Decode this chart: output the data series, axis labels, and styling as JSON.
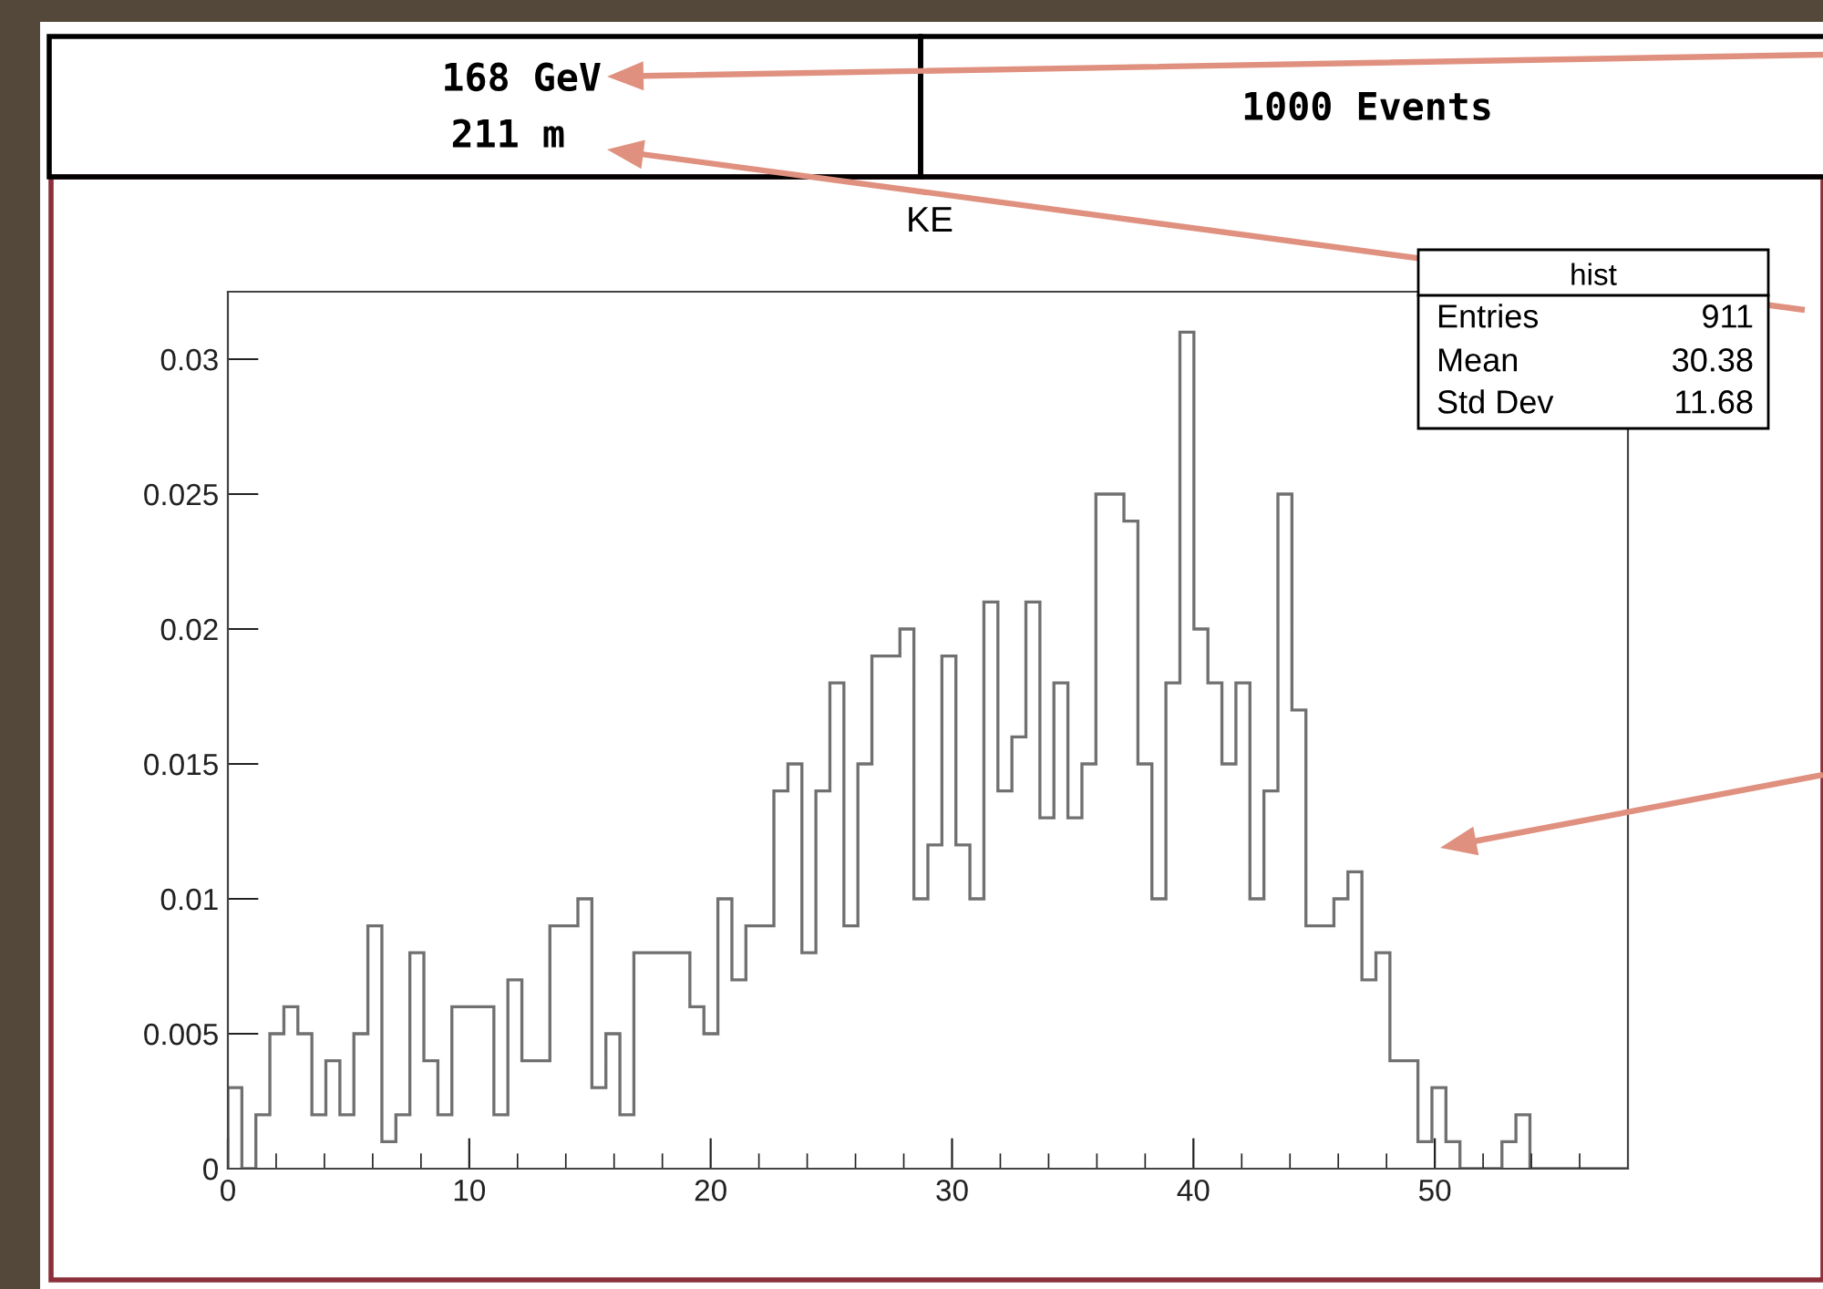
{
  "chart_data": {
    "type": "histogram",
    "title": "KE",
    "bins": [
      0,
      0.58,
      1.16,
      1.74,
      2.32,
      2.9,
      3.48,
      4.06,
      4.64,
      5.22,
      5.8,
      6.38,
      6.96,
      7.54,
      8.12,
      8.7,
      9.28,
      9.86,
      10.44,
      11.02,
      11.6,
      12.18,
      12.76,
      13.34,
      13.92,
      14.5,
      15.08,
      15.66,
      16.24,
      16.82,
      17.4,
      17.98,
      18.56,
      19.14,
      19.72,
      20.3,
      20.88,
      21.46,
      22.04,
      22.62,
      23.2,
      23.78,
      24.36,
      24.94,
      25.52,
      26.1,
      26.68,
      27.26,
      27.84,
      28.42,
      29,
      29.58,
      30.16,
      30.74,
      31.32,
      31.9,
      32.48,
      33.06,
      33.64,
      34.22,
      34.8,
      35.38,
      35.96,
      36.54,
      37.12,
      37.7,
      38.28,
      38.86,
      39.44,
      40.02,
      40.6,
      41.18,
      41.76,
      42.34,
      42.92,
      43.5,
      44.08,
      44.66,
      45.24,
      45.82,
      46.4,
      46.98,
      47.56,
      48.14,
      48.72,
      49.3,
      49.88,
      50.46,
      51.04,
      51.62,
      52.2,
      52.78,
      53.36,
      53.94,
      54.52,
      55.1,
      55.68,
      56.26,
      56.84,
      57.42,
      58
    ],
    "values": [
      0.003,
      0,
      0.002,
      0.005,
      0.006,
      0.005,
      0.002,
      0.004,
      0.002,
      0.005,
      0.009,
      0.001,
      0.002,
      0.008,
      0.004,
      0.002,
      0.006,
      0.006,
      0.006,
      0.002,
      0.007,
      0.004,
      0.004,
      0.009,
      0.009,
      0.01,
      0.003,
      0.005,
      0.002,
      0.008,
      0.008,
      0.008,
      0.008,
      0.006,
      0.005,
      0.01,
      0.007,
      0.009,
      0.009,
      0.014,
      0.015,
      0.008,
      0.014,
      0.018,
      0.009,
      0.015,
      0.019,
      0.019,
      0.02,
      0.01,
      0.012,
      0.019,
      0.012,
      0.01,
      0.021,
      0.014,
      0.016,
      0.021,
      0.013,
      0.018,
      0.013,
      0.015,
      0.025,
      0.025,
      0.024,
      0.015,
      0.01,
      0.018,
      0.031,
      0.02,
      0.018,
      0.015,
      0.018,
      0.01,
      0.014,
      0.025,
      0.017,
      0.009,
      0.009,
      0.01,
      0.011,
      0.007,
      0.008,
      0.004,
      0.004,
      0.001,
      0.003,
      0.001,
      0,
      0,
      0,
      0.001,
      0.002,
      0,
      0,
      0,
      0,
      0,
      0,
      0
    ],
    "color": "#707070",
    "xlim": [
      0,
      58
    ],
    "xticks": [
      0,
      10,
      20,
      30,
      40,
      50
    ],
    "ylim": [
      0,
      0.0325
    ],
    "yticks": [
      0,
      0.005,
      0.01,
      0.015,
      0.02,
      0.025,
      0.03
    ],
    "annotations": [
      "168 GeV",
      "211 m",
      "1000 Events",
      "hist",
      "Entries",
      "911",
      "Mean",
      "30.38",
      "Std Dev",
      "11.68"
    ]
  }
}
